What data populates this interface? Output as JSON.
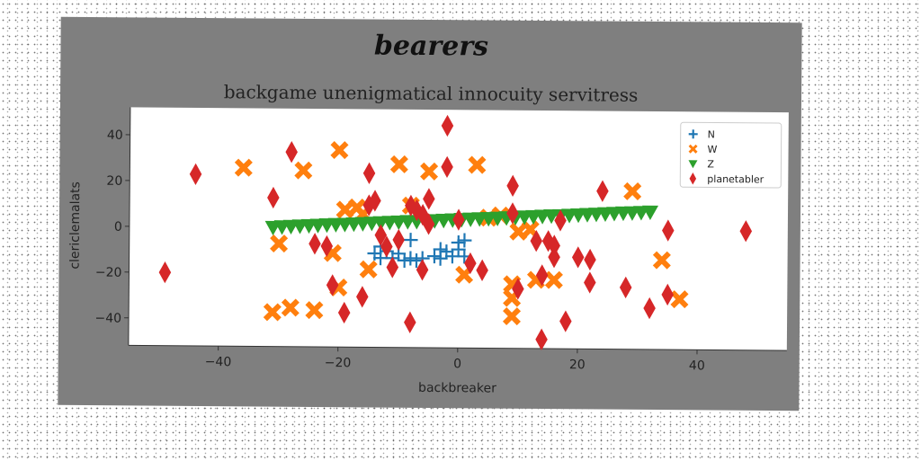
{
  "figure": {
    "suptitle": "bearers"
  },
  "colors": {
    "figure_bg": "#7f7f7f",
    "plot_bg": "#ffffff",
    "N": "#1f77b4",
    "W": "#ff7f0e",
    "Z": "#2ca02c",
    "planetabler": "#d62728"
  },
  "chart_data": {
    "type": "scatter",
    "title": "backgame unenigmatical innocuity servitress",
    "xlabel": "backbreaker",
    "ylabel": "clericlemalats",
    "xlim": [
      -55,
      55
    ],
    "ylim": [
      -52,
      52
    ],
    "xticks": [
      -40,
      -20,
      0,
      20,
      40
    ],
    "yticks": [
      -40,
      -20,
      0,
      20,
      40
    ],
    "xtick_labels": [
      "−40",
      "−20",
      "0",
      "20",
      "40"
    ],
    "ytick_labels": [
      "−40",
      "−20",
      "0",
      "20",
      "40"
    ],
    "grid": false,
    "legend_position": "top-right",
    "series": [
      {
        "name": "N",
        "marker": "plus",
        "points": [
          [
            -14,
            -11
          ],
          [
            -13,
            -13
          ],
          [
            -12,
            -10
          ],
          [
            -11,
            -13
          ],
          [
            -10,
            -11
          ],
          [
            -9,
            -14
          ],
          [
            -8,
            -5
          ],
          [
            -8,
            -13
          ],
          [
            -7,
            -14
          ],
          [
            -6,
            -13
          ],
          [
            -4,
            -12
          ],
          [
            -3,
            -9
          ],
          [
            -3,
            -13
          ],
          [
            -2,
            -10
          ],
          [
            -1,
            -12
          ],
          [
            0,
            -6
          ],
          [
            0,
            -9
          ],
          [
            1,
            -5
          ],
          [
            1,
            -12
          ],
          [
            -13,
            -8
          ]
        ]
      },
      {
        "name": "W",
        "marker": "x",
        "points": [
          [
            -36,
            26
          ],
          [
            -26,
            25
          ],
          [
            -20,
            34
          ],
          [
            -10,
            28
          ],
          [
            -5,
            25
          ],
          [
            3,
            28
          ],
          [
            -19,
            8
          ],
          [
            -17,
            9
          ],
          [
            -16,
            6
          ],
          [
            -21,
            -11
          ],
          [
            -30,
            -7
          ],
          [
            -28,
            -35
          ],
          [
            -31,
            -37
          ],
          [
            -24,
            -36
          ],
          [
            -20,
            -26
          ],
          [
            -15,
            -18
          ],
          [
            9,
            -24
          ],
          [
            9,
            -30
          ],
          [
            9,
            -38
          ],
          [
            13,
            -22
          ],
          [
            16,
            -22
          ],
          [
            10,
            -1
          ],
          [
            12,
            0
          ],
          [
            5,
            5
          ],
          [
            7,
            6
          ],
          [
            29,
            17
          ],
          [
            34,
            -13
          ],
          [
            37,
            -30
          ],
          [
            1,
            -20
          ],
          [
            -8,
            10
          ]
        ]
      },
      {
        "name": "Z",
        "points": [
          [
            -31,
            0
          ],
          [
            -29.5,
            0.3
          ],
          [
            -28,
            0.5
          ],
          [
            -26.5,
            0.7
          ],
          [
            -25,
            0.9
          ],
          [
            -23.5,
            1.1
          ],
          [
            -22,
            1.3
          ],
          [
            -20.5,
            1.5
          ],
          [
            -19,
            1.6
          ],
          [
            -17.5,
            1.8
          ],
          [
            -16,
            2
          ],
          [
            -14.5,
            2.2
          ],
          [
            -13,
            2.4
          ],
          [
            -11.5,
            2.6
          ],
          [
            -10,
            2.8
          ],
          [
            -8.5,
            3
          ],
          [
            -7,
            3.1
          ],
          [
            -5.5,
            3.3
          ],
          [
            -4,
            3.5
          ],
          [
            -2.5,
            3.7
          ],
          [
            -1,
            3.9
          ],
          [
            0.5,
            4.1
          ],
          [
            2,
            4.3
          ],
          [
            3.5,
            4.5
          ],
          [
            5,
            4.6
          ],
          [
            6.5,
            4.8
          ],
          [
            8,
            5
          ],
          [
            9.5,
            5.2
          ],
          [
            11,
            5.4
          ],
          [
            12.5,
            5.6
          ],
          [
            14,
            5.8
          ],
          [
            15.5,
            6
          ],
          [
            17,
            6.1
          ],
          [
            18.5,
            6.3
          ],
          [
            20,
            6.5
          ],
          [
            21.5,
            6.7
          ],
          [
            23,
            6.9
          ],
          [
            24.5,
            7.1
          ],
          [
            26,
            7.3
          ],
          [
            27.5,
            7.5
          ],
          [
            29,
            7.6
          ],
          [
            30.5,
            7.8
          ],
          [
            32,
            8
          ]
        ]
      },
      {
        "name": "planetabler",
        "points": [
          [
            -49,
            -20
          ],
          [
            -44,
            23
          ],
          [
            -31,
            13
          ],
          [
            -28,
            33
          ],
          [
            -24,
            -7
          ],
          [
            -22,
            -8
          ],
          [
            -21,
            -25
          ],
          [
            -19,
            -37
          ],
          [
            -16,
            -30
          ],
          [
            -15,
            10
          ],
          [
            -14,
            12
          ],
          [
            -15,
            24
          ],
          [
            -13,
            -3
          ],
          [
            -12,
            -8
          ],
          [
            -11,
            -17
          ],
          [
            -10,
            -5
          ],
          [
            -8,
            10
          ],
          [
            -7,
            8
          ],
          [
            -6,
            6
          ],
          [
            -5,
            2
          ],
          [
            -8,
            -41
          ],
          [
            -6,
            -18
          ],
          [
            -5,
            13
          ],
          [
            -2,
            45
          ],
          [
            -2,
            27
          ],
          [
            0,
            4
          ],
          [
            2,
            -15
          ],
          [
            4,
            -18
          ],
          [
            9,
            19
          ],
          [
            9,
            7
          ],
          [
            10,
            -26
          ],
          [
            13,
            -5
          ],
          [
            14,
            -20
          ],
          [
            15,
            -5
          ],
          [
            16,
            -12
          ],
          [
            16,
            -7
          ],
          [
            17,
            4
          ],
          [
            18,
            -40
          ],
          [
            20,
            -12
          ],
          [
            22,
            -13
          ],
          [
            22,
            -23
          ],
          [
            24,
            17
          ],
          [
            28,
            -25
          ],
          [
            32,
            -34
          ],
          [
            35,
            -28
          ],
          [
            35,
            0
          ],
          [
            48,
            0
          ],
          [
            14,
            -48
          ]
        ]
      }
    ]
  }
}
